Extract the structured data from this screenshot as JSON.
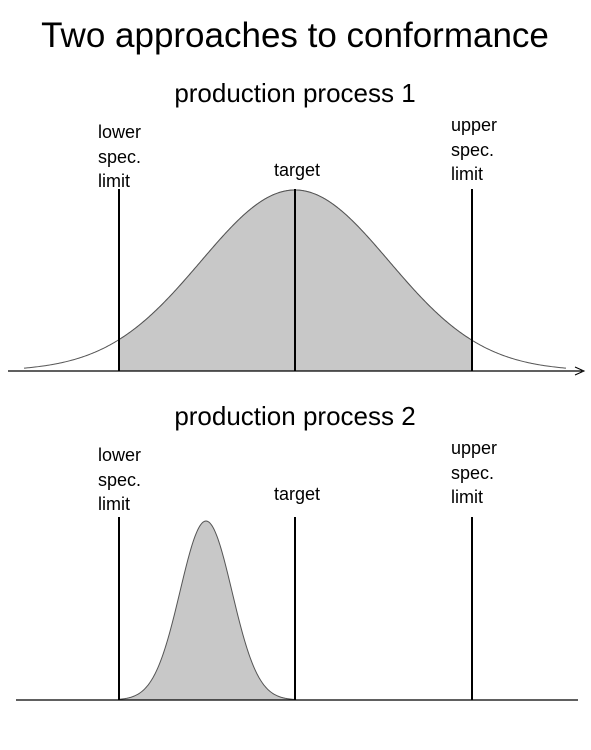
{
  "title": "Two approaches to conformance",
  "colors": {
    "fill": "#c8c8c8",
    "curve": "#555555",
    "line": "#000000"
  },
  "panels": [
    {
      "title": "production process 1",
      "lower_label": [
        "lower",
        "spec.",
        "limit"
      ],
      "target_label": "target",
      "upper_label": [
        "upper",
        "spec.",
        "limit"
      ],
      "distribution": {
        "mean_position": 0.5,
        "relative_spread": 1.0,
        "shaded_between": "lower and upper spec. limits"
      }
    },
    {
      "title": "production process 2",
      "lower_label": [
        "lower",
        "spec.",
        "limit"
      ],
      "target_label": "target",
      "upper_label": [
        "upper",
        "spec.",
        "limit"
      ],
      "distribution": {
        "mean_position": 0.25,
        "relative_spread": 0.25,
        "shaded_between": "lower spec. limit and target"
      }
    }
  ]
}
